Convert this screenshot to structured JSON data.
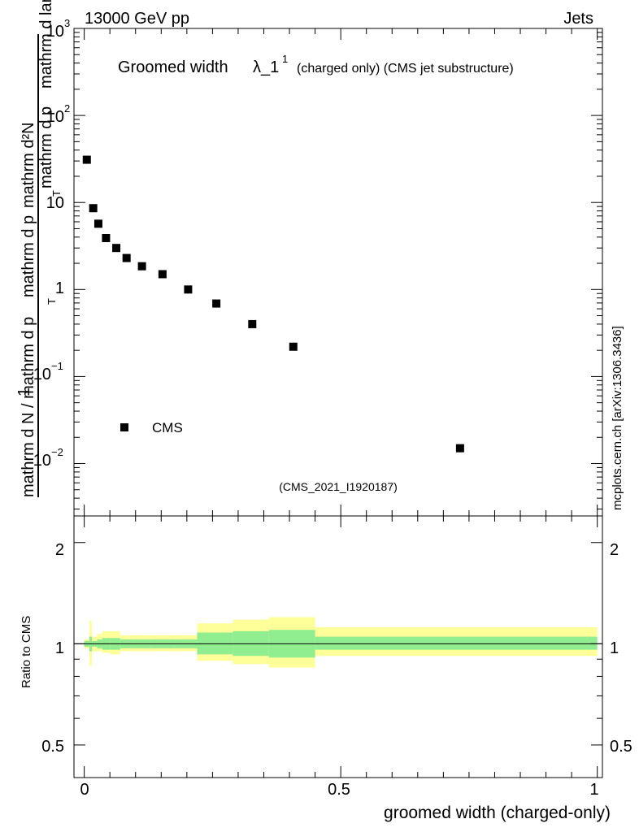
{
  "header": {
    "energy": "13000 GeV pp",
    "process": "Jets"
  },
  "main": {
    "title_main": "Groomed width",
    "title_lambda": "λ_1",
    "title_sup": "1",
    "title_small": "(charged only) (CMS jet substructure)",
    "watermark": "(CMS_2021_I1920187)",
    "side_text": "mcplots.cern.ch [arXiv:1306.3436]",
    "ylabel_numerator": "1",
    "ylabel_numerator_formula": "mathrm d²N",
    "ylabel_numerator_pt": "mathrm d p",
    "ylabel_numerator_rest": "mathrm d lambda",
    "ylabel_denominator": "mathrm d N / mathrm d p",
    "ylabel_denominator_rest": "mathrm d p",
    "subscript_T": "T",
    "legend": {
      "label": "CMS"
    },
    "yticks": [
      {
        "base": "10",
        "exp": "3"
      },
      {
        "base": "10",
        "exp": "2"
      },
      {
        "base": "10",
        "exp": ""
      },
      {
        "base": "1",
        "exp": ""
      },
      {
        "base": "10",
        "exp": "−1"
      },
      {
        "base": "10",
        "exp": "−2"
      }
    ]
  },
  "ratio": {
    "ylabel": "Ratio to CMS",
    "yticks": [
      "2",
      "1",
      "0.5"
    ],
    "xticks": [
      "0",
      "0.5",
      "1"
    ],
    "xlabel": "groomed width (charged-only)"
  },
  "colors": {
    "marker": "#000000",
    "band_stat": "#90ee90",
    "band_total": "#ffff99",
    "axis": "#000000",
    "watermark": "#999999"
  },
  "chart_data": [
    {
      "type": "scatter",
      "title": "Groomed width λ_1^1 (charged only) (CMS jet substructure)",
      "xlabel": "groomed width (charged-only)",
      "ylabel": "1/(dN/dpT) d²N/(dpT dλ)",
      "yscale": "log",
      "xlim": [
        -0.02,
        1.01
      ],
      "ylim": [
        0.0025,
        1000
      ],
      "series": [
        {
          "name": "CMS",
          "x": [
            0.005,
            0.0175,
            0.0275,
            0.0425,
            0.0625,
            0.0825,
            0.1125,
            0.1525,
            0.2025,
            0.2575,
            0.3275,
            0.4075,
            0.7325
          ],
          "y": [
            31,
            8.6,
            5.7,
            3.9,
            3.0,
            2.3,
            1.85,
            1.5,
            1.0,
            0.69,
            0.4,
            0.22,
            0.015
          ]
        }
      ]
    },
    {
      "type": "area",
      "title": "Ratio to CMS",
      "ylabel": "Ratio to CMS",
      "xlabel": "groomed width (charged-only)",
      "yscale": "log",
      "xlim": [
        -0.02,
        1.01
      ],
      "ylim": [
        0.4,
        2.4
      ],
      "reference": 1,
      "bins": [
        0,
        0.01,
        0.015,
        0.025,
        0.035,
        0.05,
        0.07,
        0.095,
        0.13,
        0.175,
        0.22,
        0.29,
        0.36,
        0.45,
        1.0
      ],
      "stat_lo": [
        0.98,
        0.95,
        0.98,
        0.97,
        0.96,
        0.96,
        0.97,
        0.97,
        0.97,
        0.97,
        0.93,
        0.92,
        0.91,
        0.96
      ],
      "stat_hi": [
        1.02,
        1.05,
        1.02,
        1.03,
        1.04,
        1.04,
        1.03,
        1.03,
        1.03,
        1.03,
        1.08,
        1.09,
        1.1,
        1.05
      ],
      "total_lo": [
        0.97,
        0.86,
        0.95,
        0.95,
        0.94,
        0.93,
        0.95,
        0.95,
        0.95,
        0.95,
        0.89,
        0.87,
        0.85,
        0.92
      ],
      "total_hi": [
        1.03,
        1.17,
        1.05,
        1.07,
        1.09,
        1.09,
        1.06,
        1.06,
        1.06,
        1.06,
        1.15,
        1.18,
        1.2,
        1.12
      ]
    }
  ]
}
